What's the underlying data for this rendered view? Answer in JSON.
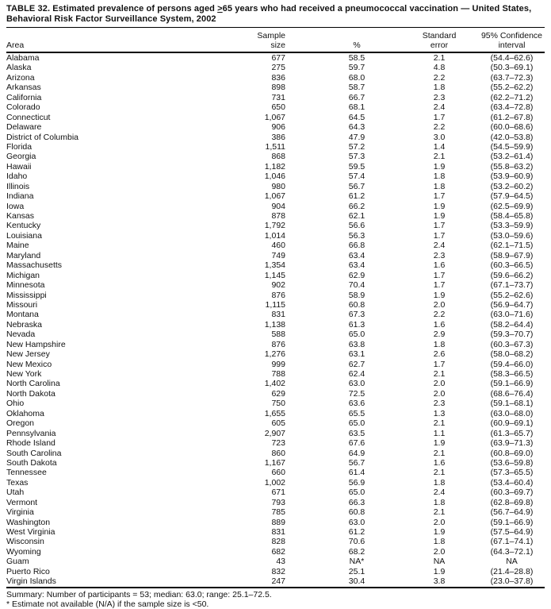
{
  "page": {
    "title_line1_pre": "TABLE 32. Estimated prevalence of persons aged ",
    "title_geq": ">",
    "title_line1_post": "65 years who had received a pneumococcal vaccination — United States,",
    "title_line2": "Behavioral Risk Factor Surveillance System, 2002"
  },
  "table": {
    "headers": {
      "area": "Area",
      "sample_line1": "Sample",
      "sample_line2": "size",
      "pct": "%",
      "se_line1": "Standard",
      "se_line2": "error",
      "ci_line1": "95% Confidence",
      "ci_line2": "interval"
    },
    "rows": [
      [
        "Alabama",
        "677",
        "58.5",
        "2.1",
        "(54.4–62.6)"
      ],
      [
        "Alaska",
        "275",
        "59.7",
        "4.8",
        "(50.3–69.1)"
      ],
      [
        "Arizona",
        "836",
        "68.0",
        "2.2",
        "(63.7–72.3)"
      ],
      [
        "Arkansas",
        "898",
        "58.7",
        "1.8",
        "(55.2–62.2)"
      ],
      [
        "California",
        "731",
        "66.7",
        "2.3",
        "(62.2–71.2)"
      ],
      [
        "Colorado",
        "650",
        "68.1",
        "2.4",
        "(63.4–72.8)"
      ],
      [
        "Connecticut",
        "1,067",
        "64.5",
        "1.7",
        "(61.2–67.8)"
      ],
      [
        "Delaware",
        "906",
        "64.3",
        "2.2",
        "(60.0–68.6)"
      ],
      [
        "District of Columbia",
        "386",
        "47.9",
        "3.0",
        "(42.0–53.8)"
      ],
      [
        "Florida",
        "1,511",
        "57.2",
        "1.4",
        "(54.5–59.9)"
      ],
      [
        "Georgia",
        "868",
        "57.3",
        "2.1",
        "(53.2–61.4)"
      ],
      [
        "Hawaii",
        "1,182",
        "59.5",
        "1.9",
        "(55.8–63.2)"
      ],
      [
        "Idaho",
        "1,046",
        "57.4",
        "1.8",
        "(53.9–60.9)"
      ],
      [
        "Illinois",
        "980",
        "56.7",
        "1.8",
        "(53.2–60.2)"
      ],
      [
        "Indiana",
        "1,067",
        "61.2",
        "1.7",
        "(57.9–64.5)"
      ],
      [
        "Iowa",
        "904",
        "66.2",
        "1.9",
        "(62.5–69.9)"
      ],
      [
        "Kansas",
        "878",
        "62.1",
        "1.9",
        "(58.4–65.8)"
      ],
      [
        "Kentucky",
        "1,792",
        "56.6",
        "1.7",
        "(53.3–59.9)"
      ],
      [
        "Louisiana",
        "1,014",
        "56.3",
        "1.7",
        "(53.0–59.6)"
      ],
      [
        "Maine",
        "460",
        "66.8",
        "2.4",
        "(62.1–71.5)"
      ],
      [
        "Maryland",
        "749",
        "63.4",
        "2.3",
        "(58.9–67.9)"
      ],
      [
        "Massachusetts",
        "1,354",
        "63.4",
        "1.6",
        "(60.3–66.5)"
      ],
      [
        "Michigan",
        "1,145",
        "62.9",
        "1.7",
        "(59.6–66.2)"
      ],
      [
        "Minnesota",
        "902",
        "70.4",
        "1.7",
        "(67.1–73.7)"
      ],
      [
        "Mississippi",
        "876",
        "58.9",
        "1.9",
        "(55.2–62.6)"
      ],
      [
        "Missouri",
        "1,115",
        "60.8",
        "2.0",
        "(56.9–64.7)"
      ],
      [
        "Montana",
        "831",
        "67.3",
        "2.2",
        "(63.0–71.6)"
      ],
      [
        "Nebraska",
        "1,138",
        "61.3",
        "1.6",
        "(58.2–64.4)"
      ],
      [
        "Nevada",
        "588",
        "65.0",
        "2.9",
        "(59.3–70.7)"
      ],
      [
        "New Hampshire",
        "876",
        "63.8",
        "1.8",
        "(60.3–67.3)"
      ],
      [
        "New Jersey",
        "1,276",
        "63.1",
        "2.6",
        "(58.0–68.2)"
      ],
      [
        "New Mexico",
        "999",
        "62.7",
        "1.7",
        "(59.4–66.0)"
      ],
      [
        "New York",
        "788",
        "62.4",
        "2.1",
        "(58.3–66.5)"
      ],
      [
        "North Carolina",
        "1,402",
        "63.0",
        "2.0",
        "(59.1–66.9)"
      ],
      [
        "North Dakota",
        "629",
        "72.5",
        "2.0",
        "(68.6–76.4)"
      ],
      [
        "Ohio",
        "750",
        "63.6",
        "2.3",
        "(59.1–68.1)"
      ],
      [
        "Oklahoma",
        "1,655",
        "65.5",
        "1.3",
        "(63.0–68.0)"
      ],
      [
        "Oregon",
        "605",
        "65.0",
        "2.1",
        "(60.9–69.1)"
      ],
      [
        "Pennsylvania",
        "2,907",
        "63.5",
        "1.1",
        "(61.3–65.7)"
      ],
      [
        "Rhode Island",
        "723",
        "67.6",
        "1.9",
        "(63.9–71.3)"
      ],
      [
        "South Carolina",
        "860",
        "64.9",
        "2.1",
        "(60.8–69.0)"
      ],
      [
        "South Dakota",
        "1,167",
        "56.7",
        "1.6",
        "(53.6–59.8)"
      ],
      [
        "Tennessee",
        "660",
        "61.4",
        "2.1",
        "(57.3–65.5)"
      ],
      [
        "Texas",
        "1,002",
        "56.9",
        "1.8",
        "(53.4–60.4)"
      ],
      [
        "Utah",
        "671",
        "65.0",
        "2.4",
        "(60.3–69.7)"
      ],
      [
        "Vermont",
        "793",
        "66.3",
        "1.8",
        "(62.8–69.8)"
      ],
      [
        "Virginia",
        "785",
        "60.8",
        "2.1",
        "(56.7–64.9)"
      ],
      [
        "Washington",
        "889",
        "63.0",
        "2.0",
        "(59.1–66.9)"
      ],
      [
        "West Virginia",
        "831",
        "61.2",
        "1.9",
        "(57.5–64.9)"
      ],
      [
        "Wisconsin",
        "828",
        "70.6",
        "1.8",
        "(67.1–74.1)"
      ],
      [
        "Wyoming",
        "682",
        "68.2",
        "2.0",
        "(64.3–72.1)"
      ],
      [
        "Guam",
        "43",
        "NA*",
        "NA",
        "NA"
      ],
      [
        "Puerto Rico",
        "832",
        "25.1",
        "1.9",
        "(21.4–28.8)"
      ],
      [
        "Virgin Islands",
        "247",
        "30.4",
        "3.8",
        "(23.0–37.8)"
      ]
    ]
  },
  "footer": {
    "summary": "Summary: Number of participants = 53; median: 63.0; range: 25.1–72.5.",
    "footnote": "* Estimate not available (N/A) if the sample size is <50."
  }
}
